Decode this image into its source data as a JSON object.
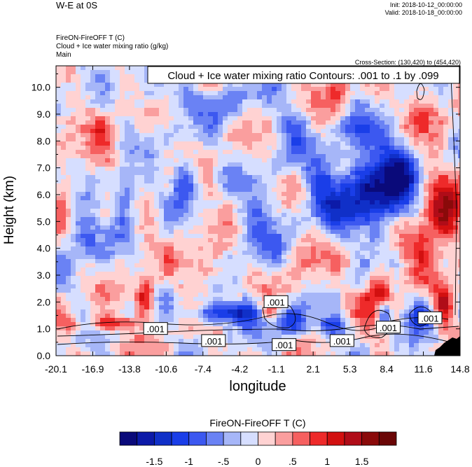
{
  "header": {
    "title": "W-E at 0S",
    "init": "Init: 2018-10-12_00:00:00",
    "valid": "Valid: 2018-10-18_00:00:00",
    "var_line1": "FireON-FireOFF T   (C)",
    "var_line2": "Cloud + Ice water mixing ratio   (g/kg)",
    "var_line3": "Main",
    "cross_section": "Cross-Section: (130,420) to (454,420)"
  },
  "chart_data": {
    "type": "heatmap",
    "title": "W-E at 0S",
    "xlabel": "longitude",
    "ylabel": "Height (km)",
    "x_ticks": [
      "-20.1",
      "-16.9",
      "-13.8",
      "-10.6",
      "-7.4",
      "-4.2",
      "-1.1",
      "2.1",
      "5.3",
      "8.4",
      "11.6",
      "14.8"
    ],
    "x_range": [
      -20.1,
      14.8
    ],
    "y_ticks": [
      "0.0",
      "1.0",
      "2.0",
      "3.0",
      "4.0",
      "5.0",
      "6.0",
      "7.0",
      "8.0",
      "9.0",
      "10.0"
    ],
    "y_range": [
      0.0,
      10.8
    ],
    "contour_legend": "Cloud + Ice water mixing ratio Contours: .001 to .1 by .099",
    "contour_labels": [
      {
        "text": ".001",
        "lon": -1.1,
        "h": 2.0
      },
      {
        "text": ".001",
        "lon": -11.5,
        "h": 1.0
      },
      {
        "text": ".001",
        "lon": -6.5,
        "h": 0.55
      },
      {
        "text": ".001",
        "lon": -0.4,
        "h": 0.4
      },
      {
        "text": ".001",
        "lon": 4.6,
        "h": 0.55
      },
      {
        "text": ".001",
        "lon": 8.6,
        "h": 1.05
      },
      {
        "text": ".001",
        "lon": 12.2,
        "h": 1.4
      }
    ],
    "blobs": [
      {
        "lon": 7.0,
        "h": 6.0,
        "v": -1.6,
        "rx": 2.2,
        "ry": 1.4
      },
      {
        "lon": 9.5,
        "h": 6.8,
        "v": -1.3,
        "rx": 1.8,
        "ry": 1.6
      },
      {
        "lon": 3.2,
        "h": 6.0,
        "v": -1.0,
        "rx": 1.8,
        "ry": 1.6
      },
      {
        "lon": 13.4,
        "h": 5.3,
        "v": 1.4,
        "rx": 1.6,
        "ry": 1.4
      },
      {
        "lon": 11.2,
        "h": 4.1,
        "v": 1.0,
        "rx": 1.4,
        "ry": 0.9
      },
      {
        "lon": 7.8,
        "h": 2.3,
        "v": 1.3,
        "rx": 1.2,
        "ry": 0.9
      },
      {
        "lon": 8.2,
        "h": 1.5,
        "v": -1.3,
        "rx": 0.7,
        "ry": 0.5
      },
      {
        "lon": 11.3,
        "h": 1.6,
        "v": -1.0,
        "rx": 1.0,
        "ry": 0.7
      },
      {
        "lon": 13.4,
        "h": 1.8,
        "v": 1.0,
        "rx": 0.9,
        "ry": 0.8
      },
      {
        "lon": -12.4,
        "h": 2.2,
        "v": 1.3,
        "rx": 0.9,
        "ry": 0.8
      },
      {
        "lon": -15.5,
        "h": 1.2,
        "v": 1.3,
        "rx": 1.6,
        "ry": 0.25
      },
      {
        "lon": -18.8,
        "h": 1.2,
        "v": 0.8,
        "rx": 1.0,
        "ry": 0.25
      },
      {
        "lon": -5.0,
        "h": 1.6,
        "v": -1.4,
        "rx": 3.5,
        "ry": 0.45
      },
      {
        "lon": 0.2,
        "h": 1.2,
        "v": -1.2,
        "rx": 1.6,
        "ry": 0.5
      },
      {
        "lon": 3.9,
        "h": 1.0,
        "v": -1.0,
        "rx": 1.2,
        "ry": 0.4
      },
      {
        "lon": -1.7,
        "h": 1.6,
        "v": 1.2,
        "rx": 1.0,
        "ry": 0.4
      },
      {
        "lon": -14.2,
        "h": 6.0,
        "v": -1.1,
        "rx": 1.0,
        "ry": 1.0
      },
      {
        "lon": -9.0,
        "h": 6.7,
        "v": -0.8,
        "rx": 1.2,
        "ry": 1.2
      },
      {
        "lon": -17.8,
        "h": 4.5,
        "v": -0.8,
        "rx": 1.6,
        "ry": 1.3
      },
      {
        "lon": -2.5,
        "h": 4.8,
        "v": -0.7,
        "rx": 2.0,
        "ry": 1.6
      },
      {
        "lon": 0.5,
        "h": 8.6,
        "v": -0.6,
        "rx": 1.5,
        "ry": 1.2
      },
      {
        "lon": 6.0,
        "h": 8.2,
        "v": -0.7,
        "rx": 1.4,
        "ry": 1.0
      },
      {
        "lon": -5.5,
        "h": 9.3,
        "v": -0.6,
        "rx": 2.2,
        "ry": 1.0
      },
      {
        "lon": -11.0,
        "h": 9.8,
        "v": -0.5,
        "rx": 2.0,
        "ry": 0.9
      },
      {
        "lon": -16.0,
        "h": 8.0,
        "v": 0.5,
        "rx": 1.4,
        "ry": 1.2
      },
      {
        "lon": -7.0,
        "h": 3.5,
        "v": 0.5,
        "rx": 2.0,
        "ry": 0.9
      },
      {
        "lon": 4.0,
        "h": 9.8,
        "v": 0.6,
        "rx": 1.6,
        "ry": 0.8
      },
      {
        "lon": 11.8,
        "h": 8.9,
        "v": 0.7,
        "rx": 1.6,
        "ry": 1.1
      },
      {
        "lon": 1.5,
        "h": 3.6,
        "v": 0.5,
        "rx": 1.5,
        "ry": 1.0
      },
      {
        "lon": -19.3,
        "h": 6.4,
        "v": 0.6,
        "rx": 0.9,
        "ry": 1.0
      }
    ]
  },
  "colorbar": {
    "title": "FireON-FireOFF T  (C)",
    "levels": [
      -1.75,
      -1.5,
      -1.25,
      -1.0,
      -0.75,
      -0.5,
      -0.25,
      0,
      0.25,
      0.5,
      0.75,
      1.0,
      1.25,
      1.5,
      1.75
    ],
    "colors": [
      "#0a0a7a",
      "#0c1aa8",
      "#1030c8",
      "#1a3ee8",
      "#3c58f0",
      "#6a82f4",
      "#a6b6f8",
      "#d6deff",
      "#ffd2d2",
      "#fa9e9e",
      "#f66060",
      "#ee2a2a",
      "#d21010",
      "#b00c18",
      "#8a0a0a",
      "#6a0606"
    ],
    "labels": [
      "-1.5",
      "-1",
      "-.5",
      "0",
      ".5",
      "1",
      "1.5"
    ],
    "label_values": [
      -1.5,
      -1.0,
      -0.5,
      0,
      0.5,
      1.0,
      1.5
    ]
  }
}
